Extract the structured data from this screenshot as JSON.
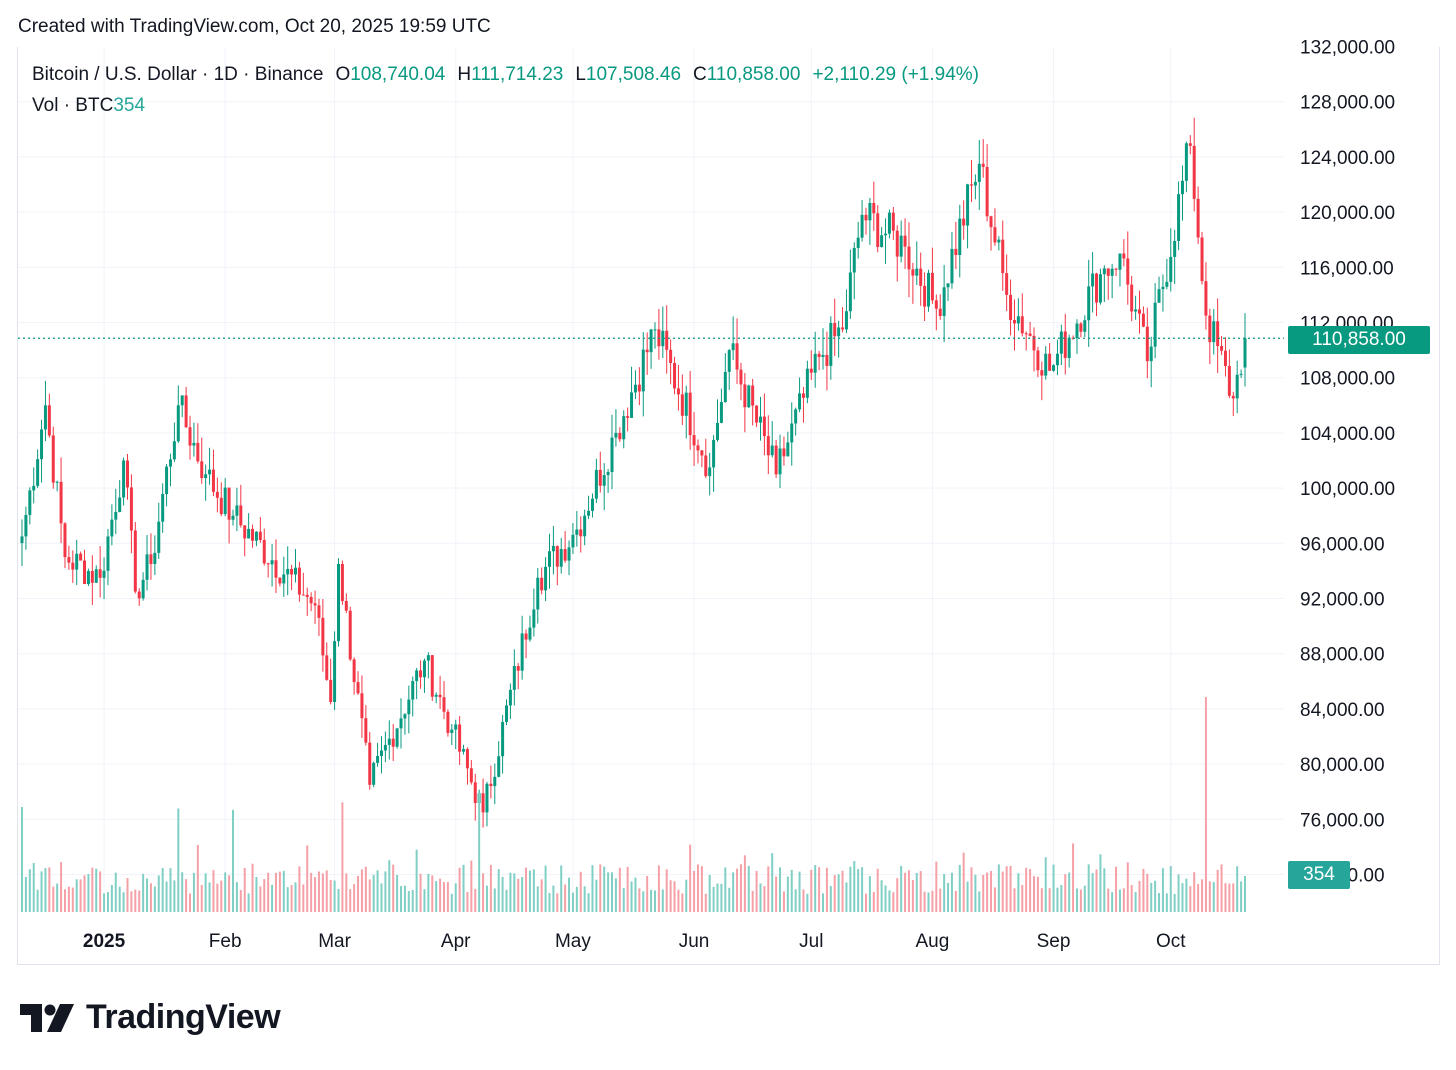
{
  "header": {
    "created_text": "Created with TradingView.com, Oct 20, 2025 19:59 UTC"
  },
  "legend": {
    "symbol": "Bitcoin / U.S. Dollar · 1D · Binance",
    "o_label": "O",
    "o_value": "108,740.04",
    "h_label": "H",
    "h_value": "111,714.23",
    "l_label": "L",
    "l_value": "107,508.46",
    "c_label": "C",
    "c_value": "110,858.00",
    "change": "+2,110.29 (+1.94%)",
    "vol_label": "Vol · BTC",
    "vol_value": "354"
  },
  "price_badge": "110,858.00",
  "volume_badge": "354",
  "brand": {
    "name": "TradingView",
    "logo_icon": "tradingview-logo-icon"
  },
  "colors": {
    "up": "#089981",
    "down": "#f23645",
    "vol_up": "#7fcfc5",
    "vol_down": "#f5a0a6",
    "grid": "#f0f3fa",
    "text": "#131722"
  },
  "chart_data": {
    "type": "candlestick",
    "symbol": "Bitcoin / U.S. Dollar",
    "interval": "1D",
    "exchange": "Binance",
    "y_ticks": [
      "132,000.00",
      "128,000.00",
      "124,000.00",
      "120,000.00",
      "116,000.00",
      "112,000.00",
      "108,000.00",
      "104,000.00",
      "100,000.00",
      "96,000.00",
      "92,000.00",
      "88,000.00",
      "84,000.00",
      "80,000.00",
      "76,000.00",
      "72,000.00"
    ],
    "x_ticks": [
      {
        "label": "2025",
        "date": "2025-01-01",
        "bold": true
      },
      {
        "label": "Feb",
        "date": "2025-02-01"
      },
      {
        "label": "Mar",
        "date": "2025-03-01"
      },
      {
        "label": "Apr",
        "date": "2025-04-01"
      },
      {
        "label": "May",
        "date": "2025-05-01"
      },
      {
        "label": "Jun",
        "date": "2025-06-01"
      },
      {
        "label": "Jul",
        "date": "2025-07-01"
      },
      {
        "label": "Aug",
        "date": "2025-08-01"
      },
      {
        "label": "Sep",
        "date": "2025-09-01"
      },
      {
        "label": "Oct",
        "date": "2025-10-01"
      }
    ],
    "x_range": [
      "2024-12-11",
      "2025-10-20"
    ],
    "y_range": [
      68000,
      133000
    ],
    "last_price": 110858,
    "close_keypoints": [
      [
        "2024-12-11",
        96500
      ],
      [
        "2024-12-17",
        106000
      ],
      [
        "2024-12-22",
        95000
      ],
      [
        "2024-12-31",
        93500
      ],
      [
        "2025-01-06",
        102000
      ],
      [
        "2025-01-09",
        92500
      ],
      [
        "2025-01-13",
        94500
      ],
      [
        "2025-01-20",
        106000
      ],
      [
        "2025-01-27",
        101000
      ],
      [
        "2025-02-03",
        98000
      ],
      [
        "2025-02-24",
        91500
      ],
      [
        "2025-02-28",
        84500
      ],
      [
        "2025-03-02",
        94500
      ],
      [
        "2025-03-10",
        78500
      ],
      [
        "2025-03-24",
        87500
      ],
      [
        "2025-03-31",
        82500
      ],
      [
        "2025-04-08",
        76500
      ],
      [
        "2025-04-22",
        93500
      ],
      [
        "2025-05-02",
        97000
      ],
      [
        "2025-05-12",
        104000
      ],
      [
        "2025-05-22",
        111500
      ],
      [
        "2025-06-05",
        101500
      ],
      [
        "2025-06-10",
        110000
      ],
      [
        "2025-06-22",
        101000
      ],
      [
        "2025-07-03",
        109500
      ],
      [
        "2025-07-09",
        111500
      ],
      [
        "2025-07-14",
        119800
      ],
      [
        "2025-07-25",
        117500
      ],
      [
        "2025-08-02",
        113000
      ],
      [
        "2025-08-13",
        123500
      ],
      [
        "2025-08-20",
        114000
      ],
      [
        "2025-08-31",
        108500
      ],
      [
        "2025-09-13",
        115500
      ],
      [
        "2025-09-18",
        117000
      ],
      [
        "2025-09-25",
        109200
      ],
      [
        "2025-10-06",
        124800
      ],
      [
        "2025-10-10",
        112500
      ],
      [
        "2025-10-17",
        106500
      ],
      [
        "2025-10-20",
        110858
      ]
    ],
    "volume": {
      "unit": "BTC",
      "last": 354,
      "spikes": [
        {
          "date": "2024-12-11",
          "level": "high"
        },
        {
          "date": "2025-01-20",
          "level": "high"
        },
        {
          "date": "2025-02-03",
          "level": "high"
        },
        {
          "date": "2025-03-03",
          "level": "high"
        },
        {
          "date": "2025-04-07",
          "level": "high"
        },
        {
          "date": "2025-10-10",
          "level": "max"
        }
      ]
    }
  }
}
